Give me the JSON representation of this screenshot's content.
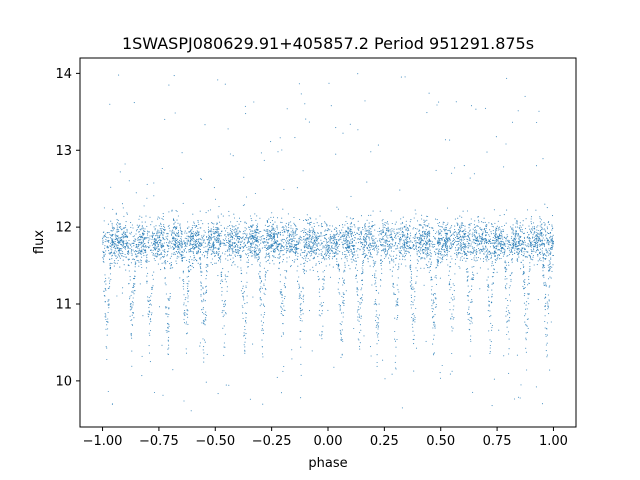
{
  "chart_data": {
    "type": "scatter",
    "title": "1SWASPJ080629.91+405857.2 Period 951291.875s",
    "xlabel": "phase",
    "ylabel": "flux",
    "xlim": [
      -1.1,
      1.1
    ],
    "ylim": [
      9.4,
      14.2
    ],
    "xticks": [
      -1.0,
      -0.75,
      -0.5,
      -0.25,
      0.0,
      0.25,
      0.5,
      0.75,
      1.0
    ],
    "xtick_labels": [
      "−1.00",
      "−0.75",
      "−0.50",
      "−0.25",
      "0.00",
      "0.25",
      "0.50",
      "0.75",
      "1.00"
    ],
    "yticks": [
      10,
      11,
      12,
      13,
      14
    ],
    "ytick_labels": [
      "10",
      "11",
      "12",
      "13",
      "14"
    ],
    "grid": false,
    "series": [
      {
        "color": "#1f77b4",
        "x_range": [
          -1.0,
          1.0
        ],
        "baseline_flux": 11.82,
        "baseline_scatter": 0.25,
        "dip_centers": [
          -0.98,
          -0.87,
          -0.79,
          -0.71,
          -0.63,
          -0.55,
          -0.46,
          -0.37,
          -0.29,
          -0.2,
          -0.12,
          -0.03,
          0.06,
          0.14,
          0.22,
          0.3,
          0.38,
          0.47,
          0.55,
          0.63,
          0.72,
          0.8,
          0.88,
          0.97
        ],
        "dip_min_flux": 10.3,
        "outlier_range": [
          9.6,
          14.0
        ]
      }
    ]
  }
}
